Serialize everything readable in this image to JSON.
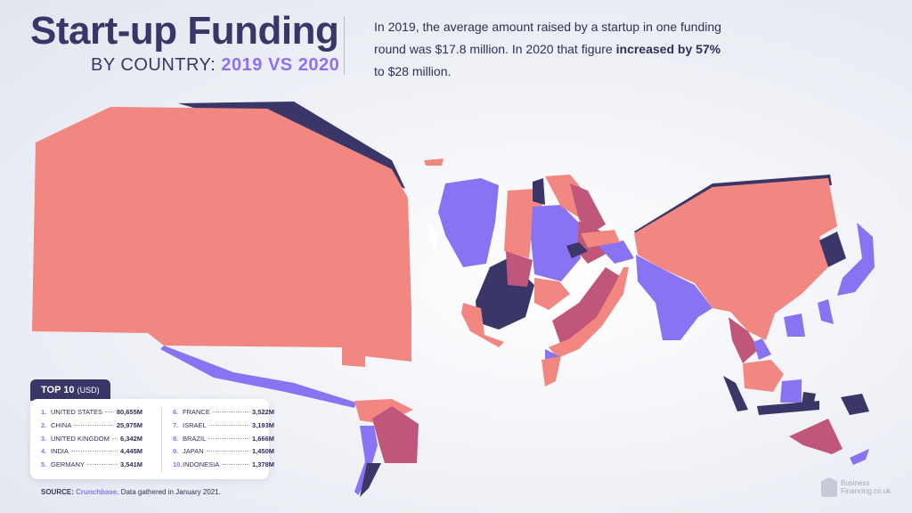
{
  "header": {
    "title": "Start-up Funding",
    "subtitle_prefix": "BY COUNTRY:",
    "subtitle_highlight": "2019 VS 2020"
  },
  "intro": {
    "text_1": "In 2019, the average amount raised by a startup in one funding round was $17.8 million. In 2020 that figure",
    "text_bold": "increased by 57%",
    "text_2": "to $28 million."
  },
  "top10": {
    "tab_label": "TOP 10",
    "tab_unit": "(USD)",
    "rows": [
      {
        "rank": "1.",
        "name": "UNITED STATES",
        "value": "80,655M"
      },
      {
        "rank": "2.",
        "name": "CHINA",
        "value": "25,975M"
      },
      {
        "rank": "3.",
        "name": "UNITED KINGDOM",
        "value": "6,342M"
      },
      {
        "rank": "4.",
        "name": "INDIA",
        "value": "4,445M"
      },
      {
        "rank": "5.",
        "name": "GERMANY",
        "value": "3,541M"
      },
      {
        "rank": "6.",
        "name": "FRANCE",
        "value": "3,522M"
      },
      {
        "rank": "7.",
        "name": "ISRAEL",
        "value": "3,193M"
      },
      {
        "rank": "8.",
        "name": "BRAZIL",
        "value": "1,666M"
      },
      {
        "rank": "9.",
        "name": "JAPAN",
        "value": "1,450M"
      },
      {
        "rank": "10.",
        "name": "INDONESIA",
        "value": "1,378M"
      }
    ]
  },
  "source": {
    "label": "SOURCE:",
    "name": "Crunchbase",
    "note": ". Data gathered in January 2021."
  },
  "logo": {
    "line1": "Business",
    "line2": "Financing.co.uk",
    "icon": "building-logo-icon"
  },
  "colors": {
    "coral": "#f28680",
    "purple": "#8a73f3",
    "navy": "#3a3668",
    "mauve": "#c0567a"
  }
}
